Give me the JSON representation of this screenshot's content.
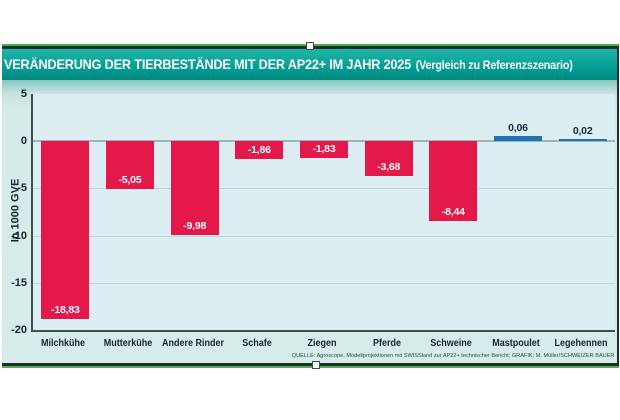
{
  "figure": {
    "title_main": "VERÄNDERUNG DER TIERBESTÄNDE MIT DER AP22+ IM JAHR 2025",
    "title_paren": "(Vergleich zu Referenzszenario)",
    "source": "QUELLE: Agroscope, Modellprojektionen mit SWISSland zur AP22+ technischer Bericht; GRAFIK: M. Müller/SCHWEIZER BAUER"
  },
  "chart_data": {
    "type": "bar",
    "title": "VERÄNDERUNG DER TIERBESTÄNDE MIT DER AP22+ IM JAHR 2025 (Vergleich zu Referenzszenario)",
    "categories": [
      "Milchkühe",
      "Mutterkühe",
      "Andere Rinder",
      "Schafe",
      "Ziegen",
      "Pferde",
      "Schweine",
      "Mastpoulet",
      "Legehennen"
    ],
    "values": [
      -18.83,
      -5.05,
      -9.98,
      -1.86,
      -1.83,
      -3.68,
      -8.44,
      0.06,
      0.02
    ],
    "value_labels": [
      "-18,83",
      "-5,05",
      "-9,98",
      "-1,86",
      "-1,83",
      "-3,68",
      "-8,44",
      "0,06",
      "0,02"
    ],
    "xlabel": "",
    "ylabel": "In 1000 GVE",
    "ylim": [
      -20,
      5
    ],
    "yticks": [
      5,
      0,
      -5,
      -10,
      -15,
      -20
    ],
    "grid": true,
    "legend_position": "none",
    "colors": {
      "negative_bar": "#e4184b",
      "positive_bar": "#1e73b4",
      "accent_teal": "#04a096"
    }
  }
}
